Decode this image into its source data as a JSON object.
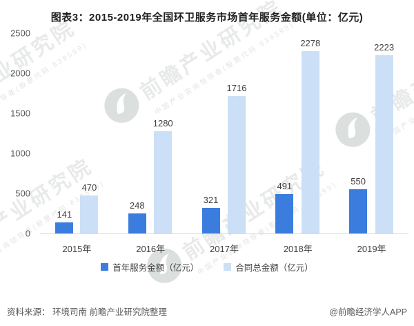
{
  "title": "图表3：2015-2019年全国环卫服务市场首年服务金额(单位：亿元)",
  "chart_data": {
    "type": "bar",
    "categories": [
      "2015年",
      "2016年",
      "2017年",
      "2018年",
      "2019年"
    ],
    "series": [
      {
        "name": "首年服务金额（亿元）",
        "color": "#3b7dde",
        "values": [
          141,
          248,
          321,
          491,
          550
        ]
      },
      {
        "name": "合同总金额（亿元）",
        "color": "#cbdff7",
        "values": [
          470,
          1280,
          1716,
          2278,
          2223
        ]
      }
    ],
    "title": "图表3：2015-2019年全国环卫服务市场首年服务金额(单位：亿元)",
    "xlabel": "",
    "ylabel": "",
    "ylim": [
      0,
      2500
    ],
    "yticks": [
      0,
      500,
      1000,
      1500,
      2000,
      2500
    ],
    "grid": false,
    "legend_position": "bottom",
    "data_labels": true
  },
  "footer": {
    "source": "资料来源： 环境司南 前瞻产业研究院整理",
    "brand": "@前瞻经济学人APP"
  },
  "watermark": {
    "text": "前瞻产业研究院",
    "subtext": "中国产业咨询领导者(股票代码:839599)"
  }
}
